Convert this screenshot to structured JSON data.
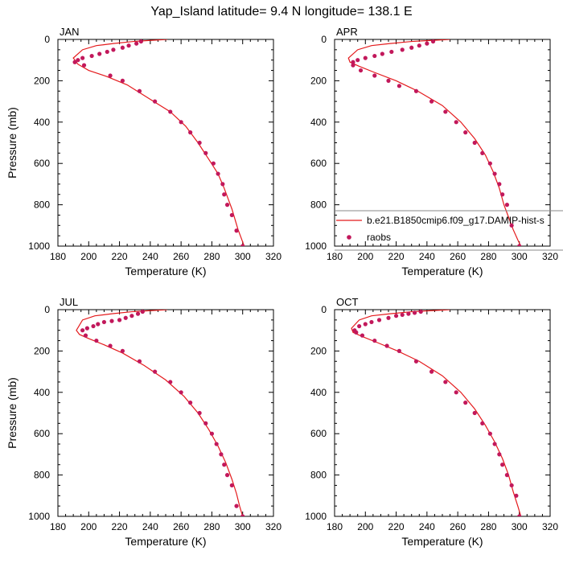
{
  "figure": {
    "title": "Yap_Island  latitude= 9.4 N longitude= 138.1 E"
  },
  "colors": {
    "model": "#e41a1c",
    "obs": "#c2185b",
    "axis": "#000000",
    "legend_border": "#888888"
  },
  "legend": {
    "model_label": "b.e21.B1850cmip6.f09_g17.DAMIP-hist-s",
    "obs_label": "raobs"
  },
  "chart_data": [
    {
      "type": "line",
      "panel": "JAN",
      "xlabel": "Temperature (K)",
      "ylabel": "Pressure (mb)",
      "xlim": [
        180,
        320
      ],
      "ylim": [
        1000,
        0
      ],
      "xticks": [
        180,
        200,
        220,
        240,
        260,
        280,
        300,
        320
      ],
      "yticks": [
        0,
        200,
        400,
        600,
        800,
        1000
      ],
      "series": [
        {
          "name": "b.e21.B1850cmip6.f09_g17.DAMIP-hist-s",
          "kind": "line",
          "x": [
            251,
            240,
            229,
            216,
            205,
            196,
            190,
            193,
            200,
            212,
            225,
            240,
            253,
            263,
            271,
            278,
            284,
            288,
            291,
            293,
            295,
            297,
            299,
            301
          ],
          "y": [
            0,
            5,
            10,
            20,
            30,
            50,
            90,
            120,
            150,
            180,
            220,
            290,
            350,
            420,
            500,
            580,
            650,
            720,
            780,
            820,
            870,
            920,
            960,
            1000
          ]
        },
        {
          "name": "raobs",
          "kind": "scatter",
          "x": [
            234,
            231,
            226,
            222,
            216,
            212,
            207,
            202,
            196,
            193,
            191,
            197,
            214,
            222,
            233,
            243,
            253,
            260,
            266,
            272,
            276,
            281,
            284,
            287,
            288,
            290,
            293,
            296,
            300
          ],
          "y": [
            10,
            20,
            30,
            40,
            50,
            60,
            70,
            80,
            90,
            100,
            110,
            125,
            175,
            200,
            250,
            300,
            350,
            400,
            450,
            500,
            550,
            600,
            650,
            700,
            750,
            800,
            850,
            925,
            1000
          ]
        }
      ]
    },
    {
      "type": "line",
      "panel": "APR",
      "xlabel": "Temperature (K)",
      "ylabel": "",
      "xlim": [
        180,
        320
      ],
      "ylim": [
        1000,
        0
      ],
      "xticks": [
        180,
        200,
        220,
        240,
        260,
        280,
        300,
        320
      ],
      "yticks": [
        0,
        200,
        400,
        600,
        800,
        1000
      ],
      "series": [
        {
          "name": "b.e21.B1850cmip6.f09_g17.DAMIP-hist-s",
          "kind": "line",
          "x": [
            255,
            243,
            230,
            216,
            204,
            195,
            189,
            190,
            196,
            206,
            220,
            234,
            250,
            262,
            271,
            278,
            283,
            287,
            290,
            293,
            296,
            299,
            301
          ],
          "y": [
            0,
            5,
            10,
            20,
            30,
            50,
            90,
            110,
            130,
            160,
            200,
            250,
            320,
            400,
            480,
            560,
            640,
            720,
            800,
            860,
            920,
            970,
            1000
          ]
        },
        {
          "name": "raobs",
          "kind": "scatter",
          "x": [
            244,
            240,
            235,
            230,
            224,
            217,
            211,
            206,
            200,
            195,
            192,
            192,
            197,
            206,
            215,
            222,
            233,
            243,
            252,
            259,
            265,
            271,
            276,
            281,
            284,
            287,
            289,
            292,
            295,
            300
          ],
          "y": [
            10,
            20,
            30,
            40,
            50,
            60,
            70,
            80,
            90,
            100,
            110,
            125,
            150,
            175,
            200,
            225,
            250,
            300,
            350,
            400,
            450,
            500,
            550,
            600,
            650,
            700,
            750,
            800,
            900,
            1000
          ]
        }
      ]
    },
    {
      "type": "line",
      "panel": "JUL",
      "xlabel": "Temperature (K)",
      "ylabel": "Pressure (mb)",
      "xlim": [
        180,
        320
      ],
      "ylim": [
        1000,
        0
      ],
      "xticks": [
        180,
        200,
        220,
        240,
        260,
        280,
        300,
        320
      ],
      "yticks": [
        0,
        200,
        400,
        600,
        800,
        1000
      ],
      "series": [
        {
          "name": "b.e21.B1850cmip6.f09_g17.DAMIP-hist-s",
          "kind": "line",
          "x": [
            251,
            240,
            228,
            215,
            204,
            196,
            192,
            194,
            200,
            210,
            222,
            236,
            250,
            262,
            271,
            278,
            284,
            289,
            293,
            296,
            298,
            300
          ],
          "y": [
            0,
            5,
            10,
            20,
            30,
            50,
            100,
            120,
            140,
            170,
            210,
            270,
            340,
            420,
            500,
            580,
            660,
            740,
            820,
            890,
            950,
            1000
          ]
        },
        {
          "name": "raobs",
          "kind": "scatter",
          "x": [
            235,
            232,
            228,
            224,
            220,
            215,
            210,
            206,
            203,
            199,
            196,
            198,
            205,
            214,
            222,
            233,
            243,
            253,
            260,
            266,
            272,
            276,
            280,
            283,
            286,
            288,
            290,
            293,
            296,
            300
          ],
          "y": [
            10,
            20,
            30,
            40,
            50,
            55,
            60,
            70,
            80,
            90,
            100,
            125,
            150,
            175,
            200,
            250,
            300,
            350,
            400,
            450,
            500,
            550,
            600,
            650,
            700,
            750,
            800,
            850,
            950,
            1000
          ]
        }
      ]
    },
    {
      "type": "line",
      "panel": "OCT",
      "xlabel": "Temperature (K)",
      "ylabel": "",
      "xlim": [
        180,
        320
      ],
      "ylim": [
        1000,
        0
      ],
      "xticks": [
        180,
        200,
        220,
        240,
        260,
        280,
        300,
        320
      ],
      "yticks": [
        0,
        200,
        400,
        600,
        800,
        1000
      ],
      "series": [
        {
          "name": "b.e21.B1850cmip6.f09_g17.DAMIP-hist-s",
          "kind": "line",
          "x": [
            255,
            243,
            230,
            216,
            204,
            196,
            191,
            192,
            198,
            208,
            221,
            235,
            250,
            262,
            271,
            278,
            284,
            289,
            293,
            296,
            299,
            301
          ],
          "y": [
            0,
            5,
            10,
            20,
            30,
            50,
            90,
            110,
            130,
            160,
            200,
            250,
            320,
            400,
            480,
            560,
            640,
            720,
            800,
            880,
            950,
            1000
          ]
        },
        {
          "name": "raobs",
          "kind": "scatter",
          "x": [
            236,
            232,
            228,
            224,
            220,
            215,
            209,
            204,
            200,
            196,
            193,
            194,
            198,
            206,
            214,
            222,
            233,
            243,
            252,
            259,
            265,
            271,
            276,
            281,
            284,
            287,
            289,
            292,
            295,
            298,
            300
          ],
          "y": [
            10,
            15,
            20,
            25,
            30,
            40,
            50,
            60,
            70,
            80,
            100,
            110,
            125,
            150,
            175,
            200,
            250,
            300,
            350,
            400,
            450,
            500,
            550,
            600,
            650,
            700,
            750,
            800,
            850,
            900,
            1000
          ]
        }
      ]
    }
  ]
}
